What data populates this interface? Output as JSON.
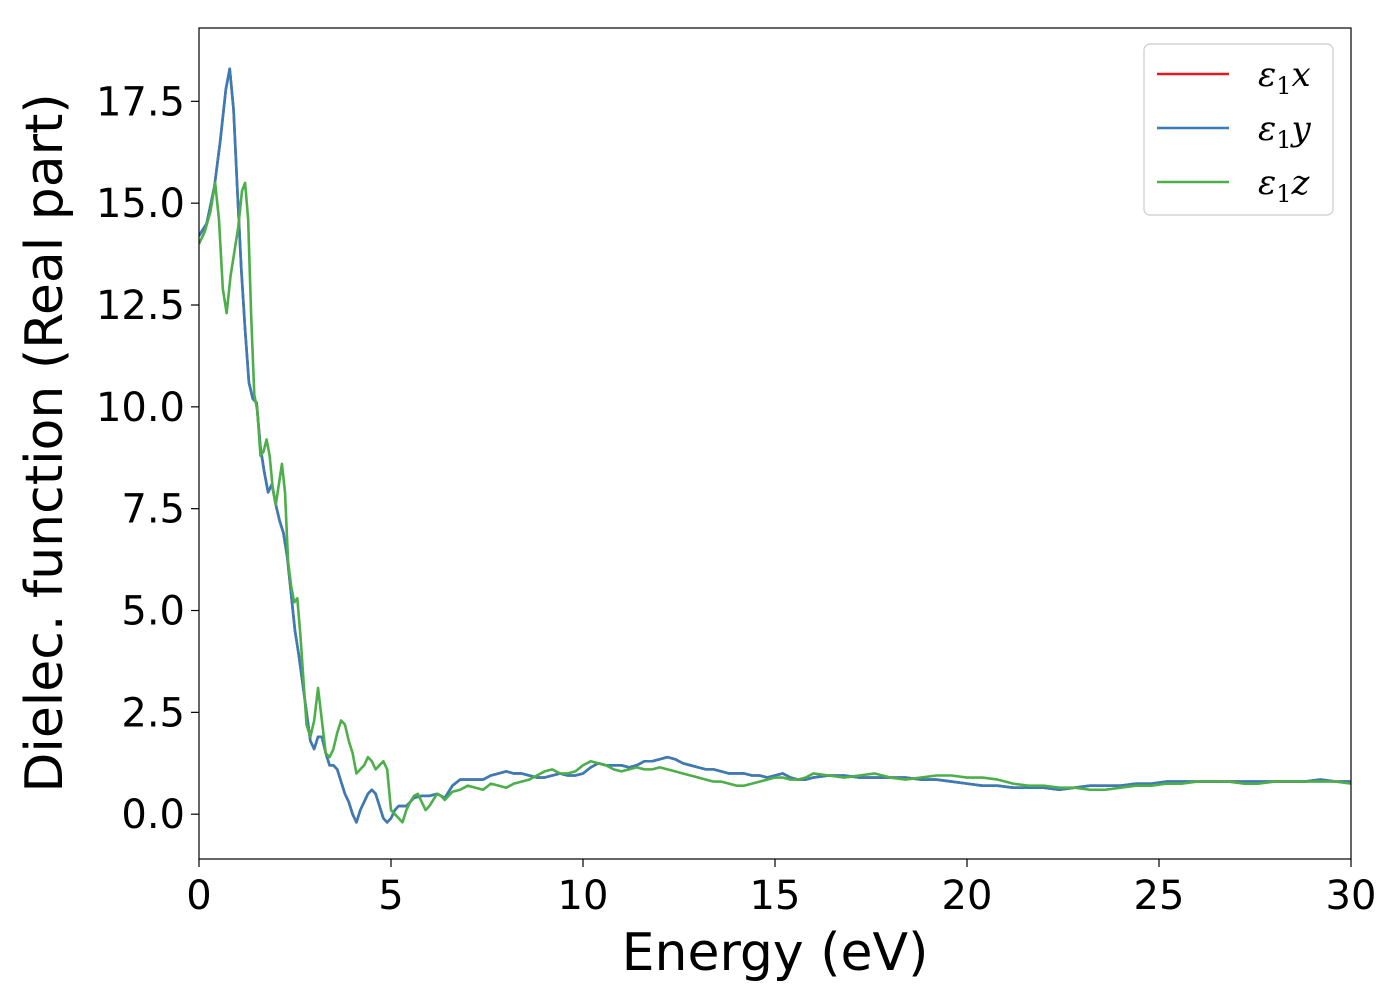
{
  "chart_data": {
    "type": "line",
    "title": "",
    "xlabel": "Energy (eV)",
    "ylabel": "Dielec. function (Real part)",
    "xlim": [
      0,
      30
    ],
    "ylim": [
      -1.1,
      19.3
    ],
    "x_ticks": [
      0,
      5,
      10,
      15,
      20,
      25,
      30
    ],
    "x_tick_labels": [
      "0",
      "5",
      "10",
      "15",
      "20",
      "25",
      "30"
    ],
    "y_ticks": [
      0.0,
      2.5,
      5.0,
      7.5,
      10.0,
      12.5,
      15.0,
      17.5
    ],
    "y_tick_labels": [
      "0.0",
      "2.5",
      "5.0",
      "7.5",
      "10.0",
      "12.5",
      "15.0",
      "17.5"
    ],
    "grid": false,
    "legend_position": "top-right",
    "series": [
      {
        "name": "ε1x",
        "name_base": "ε",
        "name_sub": "1",
        "name_var": "x",
        "color": "#e41a1c",
        "x": [
          0,
          0.2,
          0.4,
          0.55,
          0.7,
          0.8,
          0.9,
          1.0,
          1.1,
          1.2,
          1.3,
          1.4,
          1.5,
          1.6,
          1.7,
          1.8,
          1.9,
          2.0,
          2.1,
          2.2,
          2.3,
          2.4,
          2.5,
          2.6,
          2.7,
          2.8,
          2.9,
          3.0,
          3.1,
          3.2,
          3.3,
          3.4,
          3.5,
          3.6,
          3.7,
          3.8,
          3.9,
          4.0,
          4.1,
          4.2,
          4.3,
          4.4,
          4.5,
          4.6,
          4.7,
          4.8,
          4.9,
          5.0,
          5.1,
          5.2,
          5.3,
          5.4,
          5.5,
          5.6,
          5.8,
          6.0,
          6.2,
          6.4,
          6.6,
          6.8,
          7.0,
          7.2,
          7.4,
          7.6,
          7.8,
          8.0,
          8.2,
          8.4,
          8.6,
          8.8,
          9.0,
          9.2,
          9.4,
          9.6,
          9.8,
          10.0,
          10.2,
          10.4,
          10.6,
          10.8,
          11.0,
          11.2,
          11.4,
          11.6,
          11.8,
          12.0,
          12.2,
          12.4,
          12.6,
          12.8,
          13.0,
          13.2,
          13.4,
          13.6,
          13.8,
          14.0,
          14.2,
          14.4,
          14.6,
          14.8,
          15.0,
          15.2,
          15.4,
          15.6,
          15.8,
          16.0,
          16.4,
          16.8,
          17.2,
          17.6,
          18.0,
          18.4,
          18.8,
          19.2,
          19.6,
          20.0,
          20.4,
          20.8,
          21.2,
          21.6,
          22.0,
          22.4,
          22.8,
          23.2,
          23.6,
          24.0,
          24.4,
          24.8,
          25.2,
          25.6,
          26.0,
          26.4,
          26.8,
          27.2,
          27.6,
          28.0,
          28.4,
          28.8,
          29.2,
          29.6,
          30.0
        ],
        "y": [
          14.2,
          14.5,
          15.4,
          16.5,
          17.8,
          18.3,
          17.3,
          15.3,
          13.4,
          11.9,
          10.6,
          10.2,
          10.1,
          9.0,
          8.4,
          7.9,
          8.1,
          7.6,
          7.2,
          6.9,
          6.3,
          5.4,
          4.5,
          3.9,
          3.2,
          2.5,
          1.8,
          1.6,
          1.9,
          1.9,
          1.5,
          1.2,
          1.2,
          1.1,
          0.8,
          0.5,
          0.3,
          0.0,
          -0.2,
          0.1,
          0.3,
          0.5,
          0.6,
          0.5,
          0.2,
          -0.1,
          -0.2,
          -0.1,
          0.1,
          0.2,
          0.2,
          0.2,
          0.3,
          0.4,
          0.45,
          0.45,
          0.5,
          0.4,
          0.7,
          0.85,
          0.85,
          0.85,
          0.85,
          0.95,
          1.0,
          1.05,
          1.0,
          1.0,
          0.95,
          0.9,
          0.9,
          0.95,
          1.0,
          0.95,
          0.95,
          1.0,
          1.15,
          1.25,
          1.2,
          1.2,
          1.2,
          1.15,
          1.2,
          1.3,
          1.3,
          1.35,
          1.4,
          1.35,
          1.25,
          1.2,
          1.15,
          1.1,
          1.1,
          1.05,
          1.0,
          1.0,
          1.0,
          0.95,
          0.95,
          0.9,
          0.95,
          1.0,
          0.9,
          0.85,
          0.85,
          0.9,
          0.95,
          0.95,
          0.9,
          0.9,
          0.9,
          0.9,
          0.85,
          0.85,
          0.8,
          0.75,
          0.7,
          0.7,
          0.65,
          0.65,
          0.65,
          0.6,
          0.65,
          0.7,
          0.7,
          0.7,
          0.75,
          0.75,
          0.8,
          0.8,
          0.8,
          0.8,
          0.8,
          0.8,
          0.8,
          0.8,
          0.8,
          0.8,
          0.85,
          0.8,
          0.8
        ]
      },
      {
        "name": "ε1y",
        "name_base": "ε",
        "name_sub": "1",
        "name_var": "y",
        "color": "#377eb8",
        "x": [
          0,
          0.2,
          0.4,
          0.55,
          0.7,
          0.8,
          0.9,
          1.0,
          1.1,
          1.2,
          1.3,
          1.4,
          1.5,
          1.6,
          1.7,
          1.8,
          1.9,
          2.0,
          2.1,
          2.2,
          2.3,
          2.4,
          2.5,
          2.6,
          2.7,
          2.8,
          2.9,
          3.0,
          3.1,
          3.2,
          3.3,
          3.4,
          3.5,
          3.6,
          3.7,
          3.8,
          3.9,
          4.0,
          4.1,
          4.2,
          4.3,
          4.4,
          4.5,
          4.6,
          4.7,
          4.8,
          4.9,
          5.0,
          5.1,
          5.2,
          5.3,
          5.4,
          5.5,
          5.6,
          5.8,
          6.0,
          6.2,
          6.4,
          6.6,
          6.8,
          7.0,
          7.2,
          7.4,
          7.6,
          7.8,
          8.0,
          8.2,
          8.4,
          8.6,
          8.8,
          9.0,
          9.2,
          9.4,
          9.6,
          9.8,
          10.0,
          10.2,
          10.4,
          10.6,
          10.8,
          11.0,
          11.2,
          11.4,
          11.6,
          11.8,
          12.0,
          12.2,
          12.4,
          12.6,
          12.8,
          13.0,
          13.2,
          13.4,
          13.6,
          13.8,
          14.0,
          14.2,
          14.4,
          14.6,
          14.8,
          15.0,
          15.2,
          15.4,
          15.6,
          15.8,
          16.0,
          16.4,
          16.8,
          17.2,
          17.6,
          18.0,
          18.4,
          18.8,
          19.2,
          19.6,
          20.0,
          20.4,
          20.8,
          21.2,
          21.6,
          22.0,
          22.4,
          22.8,
          23.2,
          23.6,
          24.0,
          24.4,
          24.8,
          25.2,
          25.6,
          26.0,
          26.4,
          26.8,
          27.2,
          27.6,
          28.0,
          28.4,
          28.8,
          29.2,
          29.6,
          30.0
        ],
        "y": [
          14.2,
          14.5,
          15.4,
          16.5,
          17.8,
          18.3,
          17.3,
          15.3,
          13.4,
          11.9,
          10.6,
          10.2,
          10.1,
          9.0,
          8.4,
          7.9,
          8.1,
          7.6,
          7.2,
          6.9,
          6.3,
          5.4,
          4.5,
          3.9,
          3.2,
          2.5,
          1.8,
          1.6,
          1.9,
          1.9,
          1.5,
          1.2,
          1.2,
          1.1,
          0.8,
          0.5,
          0.3,
          0.0,
          -0.2,
          0.1,
          0.3,
          0.5,
          0.6,
          0.5,
          0.2,
          -0.1,
          -0.2,
          -0.1,
          0.1,
          0.2,
          0.2,
          0.2,
          0.3,
          0.4,
          0.45,
          0.45,
          0.5,
          0.4,
          0.7,
          0.85,
          0.85,
          0.85,
          0.85,
          0.95,
          1.0,
          1.05,
          1.0,
          1.0,
          0.95,
          0.9,
          0.9,
          0.95,
          1.0,
          0.95,
          0.95,
          1.0,
          1.15,
          1.25,
          1.2,
          1.2,
          1.2,
          1.15,
          1.2,
          1.3,
          1.3,
          1.35,
          1.4,
          1.35,
          1.25,
          1.2,
          1.15,
          1.1,
          1.1,
          1.05,
          1.0,
          1.0,
          1.0,
          0.95,
          0.95,
          0.9,
          0.95,
          1.0,
          0.9,
          0.85,
          0.85,
          0.9,
          0.95,
          0.95,
          0.9,
          0.9,
          0.9,
          0.9,
          0.85,
          0.85,
          0.8,
          0.75,
          0.7,
          0.7,
          0.65,
          0.65,
          0.65,
          0.6,
          0.65,
          0.7,
          0.7,
          0.7,
          0.75,
          0.75,
          0.8,
          0.8,
          0.8,
          0.8,
          0.8,
          0.8,
          0.8,
          0.8,
          0.8,
          0.8,
          0.85,
          0.8,
          0.8
        ]
      },
      {
        "name": "ε1z",
        "name_base": "ε",
        "name_sub": "1",
        "name_var": "z",
        "color": "#4daf4a",
        "x": [
          0,
          0.15,
          0.3,
          0.42,
          0.52,
          0.62,
          0.72,
          0.82,
          0.92,
          1.02,
          1.12,
          1.2,
          1.28,
          1.36,
          1.44,
          1.52,
          1.6,
          1.68,
          1.76,
          1.84,
          1.92,
          2.0,
          2.08,
          2.16,
          2.24,
          2.32,
          2.4,
          2.48,
          2.56,
          2.64,
          2.72,
          2.8,
          2.9,
          3.0,
          3.1,
          3.2,
          3.3,
          3.4,
          3.5,
          3.6,
          3.7,
          3.8,
          3.9,
          4.0,
          4.1,
          4.2,
          4.3,
          4.4,
          4.5,
          4.6,
          4.7,
          4.8,
          4.9,
          5.0,
          5.1,
          5.2,
          5.3,
          5.4,
          5.5,
          5.6,
          5.7,
          5.8,
          5.9,
          6.0,
          6.1,
          6.2,
          6.3,
          6.4,
          6.6,
          6.8,
          7.0,
          7.2,
          7.4,
          7.6,
          7.8,
          8.0,
          8.2,
          8.4,
          8.6,
          8.8,
          9.0,
          9.2,
          9.4,
          9.6,
          9.8,
          10.0,
          10.2,
          10.4,
          10.6,
          10.8,
          11.0,
          11.2,
          11.4,
          11.6,
          11.8,
          12.0,
          12.2,
          12.4,
          12.6,
          12.8,
          13.0,
          13.2,
          13.4,
          13.6,
          13.8,
          14.0,
          14.2,
          14.4,
          14.6,
          14.8,
          15.0,
          15.2,
          15.4,
          15.6,
          15.8,
          16.0,
          16.4,
          16.8,
          17.2,
          17.6,
          18.0,
          18.4,
          18.8,
          19.2,
          19.6,
          20.0,
          20.4,
          20.8,
          21.2,
          21.6,
          22.0,
          22.4,
          22.8,
          23.2,
          23.6,
          24.0,
          24.4,
          24.8,
          25.2,
          25.6,
          26.0,
          26.4,
          26.8,
          27.2,
          27.6,
          28.0,
          28.4,
          28.8,
          29.2,
          29.6,
          30.0
        ],
        "y": [
          14.0,
          14.3,
          14.8,
          15.5,
          14.6,
          12.9,
          12.3,
          13.2,
          13.8,
          14.4,
          15.3,
          15.5,
          14.6,
          12.2,
          10.3,
          9.9,
          8.8,
          8.9,
          9.2,
          8.8,
          8.0,
          7.6,
          8.1,
          8.6,
          7.9,
          6.2,
          5.6,
          5.2,
          5.3,
          4.4,
          3.3,
          2.2,
          1.9,
          2.3,
          3.1,
          2.3,
          1.5,
          1.4,
          1.6,
          2.0,
          2.3,
          2.2,
          1.8,
          1.5,
          1.0,
          1.1,
          1.2,
          1.4,
          1.3,
          1.1,
          1.2,
          1.3,
          1.1,
          0.1,
          0.0,
          -0.1,
          -0.2,
          0.1,
          0.3,
          0.45,
          0.5,
          0.3,
          0.1,
          0.2,
          0.35,
          0.5,
          0.45,
          0.35,
          0.55,
          0.6,
          0.7,
          0.65,
          0.6,
          0.75,
          0.7,
          0.65,
          0.75,
          0.8,
          0.85,
          0.95,
          1.05,
          1.1,
          1.0,
          1.0,
          1.05,
          1.2,
          1.3,
          1.25,
          1.2,
          1.1,
          1.05,
          1.1,
          1.15,
          1.1,
          1.1,
          1.15,
          1.1,
          1.05,
          1.0,
          0.95,
          0.9,
          0.85,
          0.8,
          0.8,
          0.75,
          0.7,
          0.7,
          0.75,
          0.8,
          0.85,
          0.9,
          0.9,
          0.85,
          0.85,
          0.9,
          1.0,
          0.95,
          0.9,
          0.95,
          1.0,
          0.9,
          0.85,
          0.9,
          0.95,
          0.95,
          0.9,
          0.9,
          0.85,
          0.75,
          0.7,
          0.7,
          0.65,
          0.65,
          0.6,
          0.6,
          0.65,
          0.7,
          0.7,
          0.75,
          0.75,
          0.8,
          0.8,
          0.8,
          0.75,
          0.75,
          0.8,
          0.8,
          0.8,
          0.8,
          0.8,
          0.75
        ]
      }
    ]
  }
}
